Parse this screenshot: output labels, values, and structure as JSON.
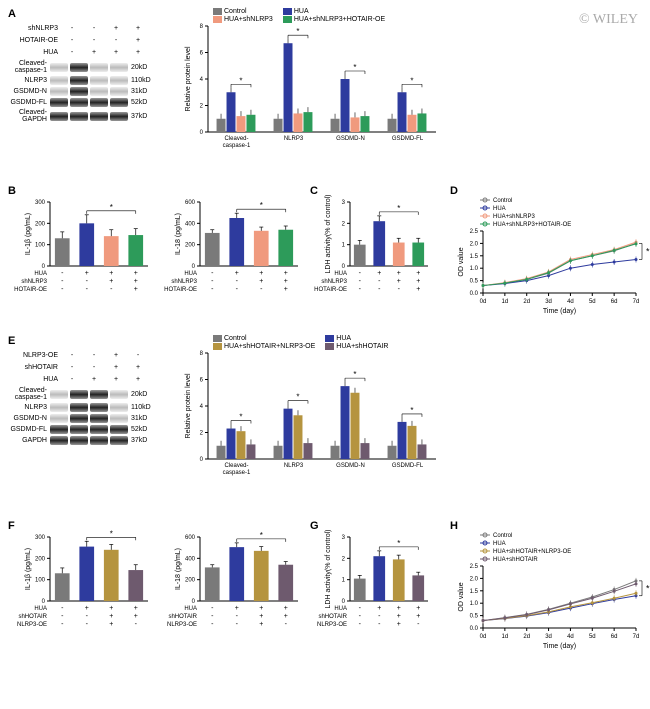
{
  "watermark": "© WILEY",
  "panelA": {
    "label": "A",
    "conditions": {
      "rows": [
        "shNLRP3",
        "HOTAIR-OE",
        "HUA"
      ],
      "vals": [
        [
          "-",
          "-",
          "+",
          "+"
        ],
        [
          "-",
          "-",
          "-",
          "+"
        ],
        [
          "-",
          "+",
          "+",
          "+"
        ]
      ]
    },
    "blots": [
      {
        "name": "Cleaved-\ncaspase-1",
        "mw": "20kD",
        "int": [
          "light",
          "dark",
          "light",
          "light"
        ]
      },
      {
        "name": "NLRP3",
        "mw": "110kD",
        "int": [
          "light",
          "dark",
          "light",
          "light"
        ]
      },
      {
        "name": "GSDMD-N",
        "mw": "31kD",
        "int": [
          "light",
          "dark",
          "light",
          "light"
        ]
      },
      {
        "name": "GSDMD-FL",
        "mw": "52kD",
        "int": [
          "dark",
          "dark",
          "dark",
          "dark"
        ]
      },
      {
        "name": "Cleaved-\nGAPDH",
        "mw": "37kD",
        "int": [
          "dark",
          "dark",
          "dark",
          "dark"
        ]
      }
    ],
    "chart": {
      "ylabel": "Relative protein level",
      "ymax": 8,
      "ytick": 2,
      "groups": [
        "Cleaved-\ncaspase-1",
        "NLRP3",
        "GSDMD-N",
        "GSDMD-FL"
      ],
      "legend": [
        "Control",
        "HUA",
        "HUA+shNLRP3",
        "HUA+shNLRP3+HOTAIR-OE"
      ],
      "colors": [
        "#7a7a7a",
        "#2e3b9e",
        "#f09a7e",
        "#2d9b5a"
      ],
      "data": [
        [
          1.0,
          3.0,
          1.2,
          1.3
        ],
        [
          1.0,
          6.7,
          1.4,
          1.5
        ],
        [
          1.0,
          4.0,
          1.1,
          1.2
        ],
        [
          1.0,
          3.0,
          1.3,
          1.4
        ]
      ]
    }
  },
  "panelB": {
    "label": "B",
    "charts": [
      {
        "ylabel": "IL-1β (pg/mL)",
        "ymax": 300,
        "ytick": 100,
        "data": [
          130,
          200,
          140,
          145
        ],
        "err": [
          30,
          40,
          30,
          30
        ]
      },
      {
        "ylabel": "IL-18 (pg/mL)",
        "ymax": 600,
        "ytick": 200,
        "data": [
          310,
          450,
          330,
          340
        ],
        "err": [
          30,
          45,
          35,
          35
        ]
      }
    ],
    "colors": [
      "#7a7a7a",
      "#2e3b9e",
      "#f09a7e",
      "#2d9b5a"
    ],
    "cond": {
      "rows": [
        "HUA",
        "shNLRP3",
        "HOTAIR-OE"
      ],
      "vals": [
        [
          "-",
          "+",
          "+",
          "+"
        ],
        [
          "-",
          "-",
          "+",
          "+"
        ],
        [
          "-",
          "-",
          "-",
          "+"
        ]
      ]
    }
  },
  "panelC": {
    "label": "C",
    "ylabel": "LDH activity(% of control)",
    "ymax": 3,
    "ytick": 1,
    "data": [
      1.0,
      2.1,
      1.1,
      1.1
    ],
    "err": [
      0.2,
      0.25,
      0.2,
      0.2
    ],
    "colors": [
      "#7a7a7a",
      "#2e3b9e",
      "#f09a7e",
      "#2d9b5a"
    ],
    "cond": {
      "rows": [
        "HUA",
        "shNLRP3",
        "HOTAIR-OE"
      ],
      "vals": [
        [
          "-",
          "+",
          "+",
          "+"
        ],
        [
          "-",
          "-",
          "+",
          "+"
        ],
        [
          "-",
          "-",
          "-",
          "+"
        ]
      ]
    }
  },
  "panelD": {
    "label": "D",
    "ylabel": "OD value",
    "ymax": 2.5,
    "ytick": 0.5,
    "xlabel": "Time (day)",
    "xvals": [
      "0d",
      "1d",
      "2d",
      "3d",
      "4d",
      "5d",
      "6d",
      "7d"
    ],
    "legend": [
      "Control",
      "HUA",
      "HUA+shNLRP3",
      "HUA+shNLRP3+HOTAIR-OE"
    ],
    "colors": [
      "#7a7a7a",
      "#2e3b9e",
      "#f09a7e",
      "#2d9b5a"
    ],
    "series": [
      [
        0.3,
        0.4,
        0.55,
        0.8,
        1.3,
        1.5,
        1.7,
        2.0
      ],
      [
        0.3,
        0.38,
        0.5,
        0.7,
        1.0,
        1.15,
        1.25,
        1.35
      ],
      [
        0.3,
        0.42,
        0.58,
        0.85,
        1.35,
        1.55,
        1.75,
        2.05
      ],
      [
        0.3,
        0.4,
        0.55,
        0.82,
        1.3,
        1.5,
        1.72,
        1.98
      ]
    ]
  },
  "panelE": {
    "label": "E",
    "conditions": {
      "rows": [
        "NLRP3-OE",
        "shHOTAIR",
        "HUA"
      ],
      "vals": [
        [
          "-",
          "-",
          "+",
          "-"
        ],
        [
          "-",
          "-",
          "+",
          "+"
        ],
        [
          "-",
          "+",
          "+",
          "+"
        ]
      ]
    },
    "blots": [
      {
        "name": "Cleaved-\ncaspase-1",
        "mw": "20kD",
        "int": [
          "light",
          "dark",
          "dark",
          "light"
        ]
      },
      {
        "name": "NLRP3",
        "mw": "110kD",
        "int": [
          "light",
          "dark",
          "dark",
          "light"
        ]
      },
      {
        "name": "GSDMD-N",
        "mw": "31kD",
        "int": [
          "light",
          "dark",
          "dark",
          "light"
        ]
      },
      {
        "name": "GSDMD-FL",
        "mw": "52kD",
        "int": [
          "dark",
          "dark",
          "dark",
          "dark"
        ]
      },
      {
        "name": "GAPDH",
        "mw": "37kD",
        "int": [
          "dark",
          "dark",
          "dark",
          "dark"
        ]
      }
    ],
    "chart": {
      "ylabel": "Relative protein level",
      "ymax": 8,
      "ytick": 2,
      "groups": [
        "Cleaved-\ncaspase-1",
        "NLRP3",
        "GSDMD-N",
        "GSDMD-FL"
      ],
      "legend": [
        "Control",
        "HUA",
        "HUA+shHOTAIR+NLRP3-OE",
        "HUA+shHOTAIR"
      ],
      "colors": [
        "#7a7a7a",
        "#2e3b9e",
        "#b5943f",
        "#6e5a6e"
      ],
      "data": [
        [
          1.0,
          2.3,
          2.1,
          1.1
        ],
        [
          1.0,
          3.8,
          3.3,
          1.2
        ],
        [
          1.0,
          5.5,
          5.0,
          1.2
        ],
        [
          1.0,
          2.8,
          2.5,
          1.1
        ]
      ]
    }
  },
  "panelF": {
    "label": "F",
    "charts": [
      {
        "ylabel": "IL-1β (pg/mL)",
        "ymax": 300,
        "ytick": 100,
        "data": [
          130,
          255,
          240,
          145
        ],
        "err": [
          25,
          25,
          25,
          25
        ]
      },
      {
        "ylabel": "IL-18 (pg/mL)",
        "ymax": 600,
        "ytick": 200,
        "data": [
          315,
          505,
          470,
          340
        ],
        "err": [
          25,
          40,
          40,
          30
        ]
      }
    ],
    "colors": [
      "#7a7a7a",
      "#2e3b9e",
      "#b5943f",
      "#6e5a6e"
    ],
    "cond": {
      "rows": [
        "HUA",
        "shHOTAIR",
        "NLRP3-OE"
      ],
      "vals": [
        [
          "-",
          "+",
          "+",
          "+"
        ],
        [
          "-",
          "-",
          "+",
          "+"
        ],
        [
          "-",
          "-",
          "+",
          "-"
        ]
      ]
    }
  },
  "panelG": {
    "label": "G",
    "ylabel": "LDH activity(% of control)",
    "ymax": 3,
    "ytick": 1,
    "data": [
      1.05,
      2.1,
      1.95,
      1.2
    ],
    "err": [
      0.15,
      0.25,
      0.2,
      0.15
    ],
    "colors": [
      "#7a7a7a",
      "#2e3b9e",
      "#b5943f",
      "#6e5a6e"
    ],
    "cond": {
      "rows": [
        "HUA",
        "shHOTAIR",
        "NLRP3-OE"
      ],
      "vals": [
        [
          "-",
          "+",
          "+",
          "+"
        ],
        [
          "-",
          "-",
          "+",
          "+"
        ],
        [
          "-",
          "-",
          "+",
          "-"
        ]
      ]
    }
  },
  "panelH": {
    "label": "H",
    "ylabel": "OD value",
    "ymax": 2.5,
    "ytick": 0.5,
    "xlabel": "Time (day)",
    "xvals": [
      "0d",
      "1d",
      "2d",
      "3d",
      "4d",
      "5d",
      "6d",
      "7d"
    ],
    "legend": [
      "Control",
      "HUA",
      "HUA+shHOTAIR+NLRP3-OE",
      "HUA+shHOTAIR"
    ],
    "colors": [
      "#7a7a7a",
      "#2e3b9e",
      "#b5943f",
      "#6e5a6e"
    ],
    "series": [
      [
        0.3,
        0.42,
        0.55,
        0.75,
        1.0,
        1.25,
        1.55,
        1.9
      ],
      [
        0.3,
        0.38,
        0.48,
        0.62,
        0.8,
        0.98,
        1.15,
        1.3
      ],
      [
        0.3,
        0.39,
        0.5,
        0.65,
        0.85,
        1.02,
        1.2,
        1.4
      ],
      [
        0.3,
        0.41,
        0.54,
        0.73,
        0.97,
        1.2,
        1.48,
        1.78
      ]
    ]
  }
}
